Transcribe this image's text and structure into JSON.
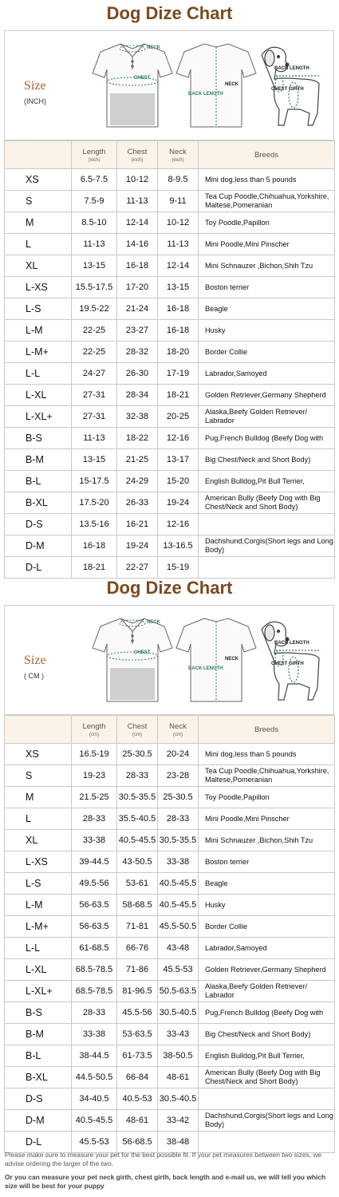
{
  "title": "Dog Dize Chart",
  "illustration_labels": {
    "neck": "NECK",
    "chest": "CHEST",
    "back_length": "BACK LENGTH",
    "back_length_caps": "BACK LENGTH",
    "neck_dog": "NECK",
    "chest_girth": "CHEST GIRTH"
  },
  "headers": {
    "length": "Length",
    "chest": "Chest",
    "neck": "Neck",
    "breeds": "Breeds"
  },
  "inch": {
    "size_label": "Size",
    "unit": "(INCH)",
    "unit_sub": "(inch)",
    "rows": [
      {
        "size": "XS",
        "length": "6.5-7.5",
        "chest": "10-12",
        "neck": "8-9.5",
        "breeds": "Mini dog,less than 5 pounds"
      },
      {
        "size": "S",
        "length": "7.5-9",
        "chest": "11-13",
        "neck": "9-11",
        "breeds": "Tea Cup Poodle,Chihuahua,Yorkshire, Maltese,Pomeranian"
      },
      {
        "size": "M",
        "length": "8.5-10",
        "chest": "12-14",
        "neck": "10-12",
        "breeds": "Toy Poodle,Papillon"
      },
      {
        "size": "L",
        "length": "11-13",
        "chest": "14-16",
        "neck": "11-13",
        "breeds": "Mini Poodle,Mini Pinscher"
      },
      {
        "size": "XL",
        "length": "13-15",
        "chest": "16-18",
        "neck": "12-14",
        "breeds": "Mini Schnauzer ,Bichon,Shih Tzu"
      },
      {
        "size": "L-XS",
        "length": "15.5-17.5",
        "chest": "17-20",
        "neck": "13-15",
        "breeds": "Boston terrier"
      },
      {
        "size": "L-S",
        "length": "19.5-22",
        "chest": "21-24",
        "neck": "16-18",
        "breeds": "Beagle"
      },
      {
        "size": "L-M",
        "length": "22-25",
        "chest": "23-27",
        "neck": "16-18",
        "breeds": "Husky"
      },
      {
        "size": "L-M+",
        "length": "22-25",
        "chest": "28-32",
        "neck": "18-20",
        "breeds": "Border Collie"
      },
      {
        "size": "L-L",
        "length": "24-27",
        "chest": "26-30",
        "neck": "17-19",
        "breeds": "Labrador,Samoyed"
      },
      {
        "size": "L-XL",
        "length": "27-31",
        "chest": "28-34",
        "neck": "18-21",
        "breeds": "Golden Retriever,Germany Shepherd"
      },
      {
        "size": "L-XL+",
        "length": "27-31",
        "chest": "32-38",
        "neck": "20-25",
        "breeds": "Alaska,Beefy Golden Retriever/ Labrador"
      },
      {
        "size": "B-S",
        "length": "11-13",
        "chest": "18-22",
        "neck": "12-16",
        "breeds": "Pug,French Bulldog (Beefy Dog with"
      },
      {
        "size": "B-M",
        "length": "13-15",
        "chest": "21-25",
        "neck": "13-17",
        "breeds": "Big Chest/Neck and Short Body)"
      },
      {
        "size": "B-L",
        "length": "15-17.5",
        "chest": "24-29",
        "neck": "15-20",
        "breeds": "English Bulldog,Pit Bull Terrier,"
      },
      {
        "size": "B-XL",
        "length": "17.5-20",
        "chest": "26-33",
        "neck": "19-24",
        "breeds": "American Bully (Beefy Dog with Big Chest/Neck and Short Body)"
      },
      {
        "size": "D-S",
        "length": "13.5-16",
        "chest": "16-21",
        "neck": "12-16",
        "breeds": ""
      },
      {
        "size": "D-M",
        "length": "16-18",
        "chest": "19-24",
        "neck": "13-16.5",
        "breeds": "Dachshund,Corgis(Short legs and Long Body)"
      },
      {
        "size": "D-L",
        "length": "18-21",
        "chest": "22-27",
        "neck": "15-19",
        "breeds": ""
      }
    ]
  },
  "cm": {
    "size_label": "Size",
    "unit": "( CM )",
    "unit_sub": "(cm)",
    "rows": [
      {
        "size": "XS",
        "length": "16.5-19",
        "chest": "25-30.5",
        "neck": "20-24",
        "breeds": "Mini dog,less than 5 pounds"
      },
      {
        "size": "S",
        "length": "19-23",
        "chest": "28-33",
        "neck": "23-28",
        "breeds": "Tea Cup Poodle,Chihuahua,Yorkshire, Maltese,Pomeranian"
      },
      {
        "size": "M",
        "length": "21.5-25",
        "chest": "30.5-35.5",
        "neck": "25-30.5",
        "breeds": "Toy Poodle,Papillon"
      },
      {
        "size": "L",
        "length": "28-33",
        "chest": "35.5-40.5",
        "neck": "28-33",
        "breeds": "Mini Poodle,Mini Pinscher"
      },
      {
        "size": "XL",
        "length": "33-38",
        "chest": "40.5-45.5",
        "neck": "30.5-35.5",
        "breeds": "Mini Schnauzer ,Bichon,Shih Tzu"
      },
      {
        "size": "L-XS",
        "length": "39-44.5",
        "chest": "43-50.5",
        "neck": "33-38",
        "breeds": "Boston terrier"
      },
      {
        "size": "L-S",
        "length": "49.5-56",
        "chest": "53-61",
        "neck": "40.5-45.5",
        "breeds": "Beagle"
      },
      {
        "size": "L-M",
        "length": "56-63.5",
        "chest": "58-68.5",
        "neck": "40.5-45.5",
        "breeds": "Husky"
      },
      {
        "size": "L-M+",
        "length": "56-63.5",
        "chest": "71-81",
        "neck": "45.5-50.5",
        "breeds": "Border Collie"
      },
      {
        "size": "L-L",
        "length": "61-68.5",
        "chest": "66-76",
        "neck": "43-48",
        "breeds": "Labrador,Samoyed"
      },
      {
        "size": "L-XL",
        "length": "68.5-78.5",
        "chest": "71-86",
        "neck": "45.5-53",
        "breeds": "Golden Retriever,Germany Shepherd"
      },
      {
        "size": "L-XL+",
        "length": "68.5-78.5",
        "chest": "81-96.5",
        "neck": "50.5-63.5",
        "breeds": "Alaska,Beefy Golden Retriever/ Labrador"
      },
      {
        "size": "B-S",
        "length": "28-33",
        "chest": "45.5-56",
        "neck": "30.5-40.5",
        "breeds": "Pug,French Bulldog (Beefy Dog with"
      },
      {
        "size": "B-M",
        "length": "33-38",
        "chest": "53-63.5",
        "neck": "33-43",
        "breeds": "Big Chest/Neck and Short Body)"
      },
      {
        "size": "B-L",
        "length": "38-44.5",
        "chest": "61-73.5",
        "neck": "38-50.5",
        "breeds": "English Bulldog,Pit Bull Terrier,"
      },
      {
        "size": "B-XL",
        "length": "44.5-50.5",
        "chest": "66-84",
        "neck": "48-61",
        "breeds": "American Bully (Beefy Dog with Big Chest/Neck and Short Body)"
      },
      {
        "size": "D-S",
        "length": "34-40.5",
        "chest": "40.5-53",
        "neck": "30.5-40.5",
        "breeds": ""
      },
      {
        "size": "D-M",
        "length": "40.5-45.5",
        "chest": "48-61",
        "neck": "33-42",
        "breeds": "Dachshund,Corgis(Short legs and Long Body)"
      },
      {
        "size": "D-L",
        "length": "45.5-53",
        "chest": "56-68.5",
        "neck": "38-48",
        "breeds": ""
      }
    ]
  },
  "footer": {
    "note": "Please make sure to measure your pet for the best possible fit. If your pet measures between two sizes, we advise ordering the larger of the two.",
    "tip": "Or you can measure your pet neck girth, chest girth, back length and e-mail us, we will tell you which size will be best for your puppy"
  }
}
